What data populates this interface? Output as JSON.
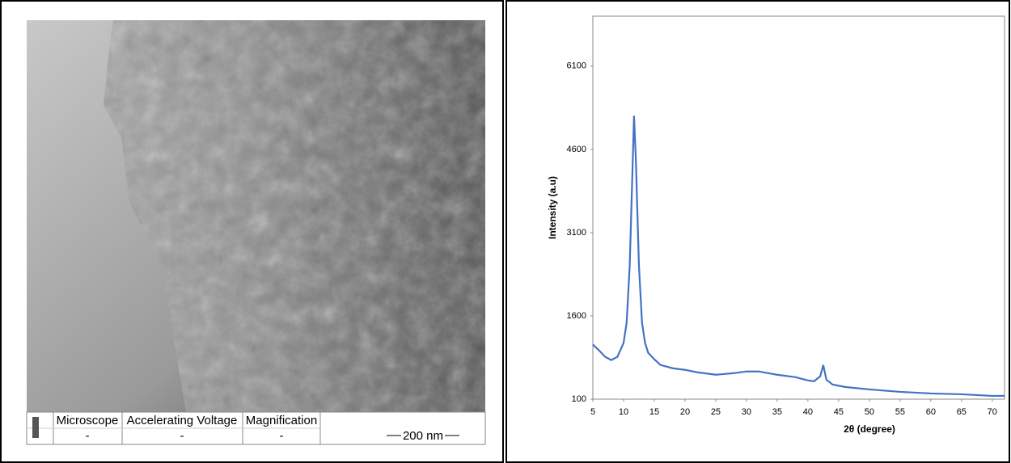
{
  "micrograph": {
    "headers": [
      "Microscope",
      "Accelerating Voltage",
      "Magnification"
    ],
    "values": [
      "-",
      "-",
      "-"
    ],
    "scale_bar": "200 nm"
  },
  "chart_data": {
    "type": "line",
    "xlabel": "2θ (degree)",
    "ylabel": "Intensity (a.u)",
    "x": [
      5,
      6,
      7,
      8,
      9,
      10,
      10.5,
      11,
      11.5,
      11.7,
      12,
      12.5,
      13,
      13.5,
      14,
      15,
      16,
      18,
      20,
      22,
      25,
      28,
      30,
      32,
      35,
      38,
      40,
      41,
      42,
      42.5,
      43,
      44,
      46,
      50,
      55,
      60,
      65,
      70,
      72
    ],
    "series": [
      {
        "color": "#4472c4",
        "values": [
          1083,
          980,
          863,
          804,
          863,
          1112,
          1479,
          2506,
          4413,
          5205,
          4413,
          2506,
          1479,
          1112,
          936,
          819,
          716,
          657,
          628,
          584,
          540,
          569,
          599,
          599,
          540,
          496,
          437,
          423,
          511,
          716,
          452,
          364,
          320,
          276,
          232,
          203,
          188,
          159,
          159
        ]
      }
    ],
    "xlim": [
      5,
      72
    ],
    "xticks": [
      5,
      10,
      15,
      20,
      25,
      30,
      35,
      40,
      45,
      50,
      55,
      60,
      65,
      70
    ],
    "ylim": [
      100,
      7000
    ],
    "yticks": [
      100,
      1600,
      3100,
      4600,
      6100
    ]
  }
}
